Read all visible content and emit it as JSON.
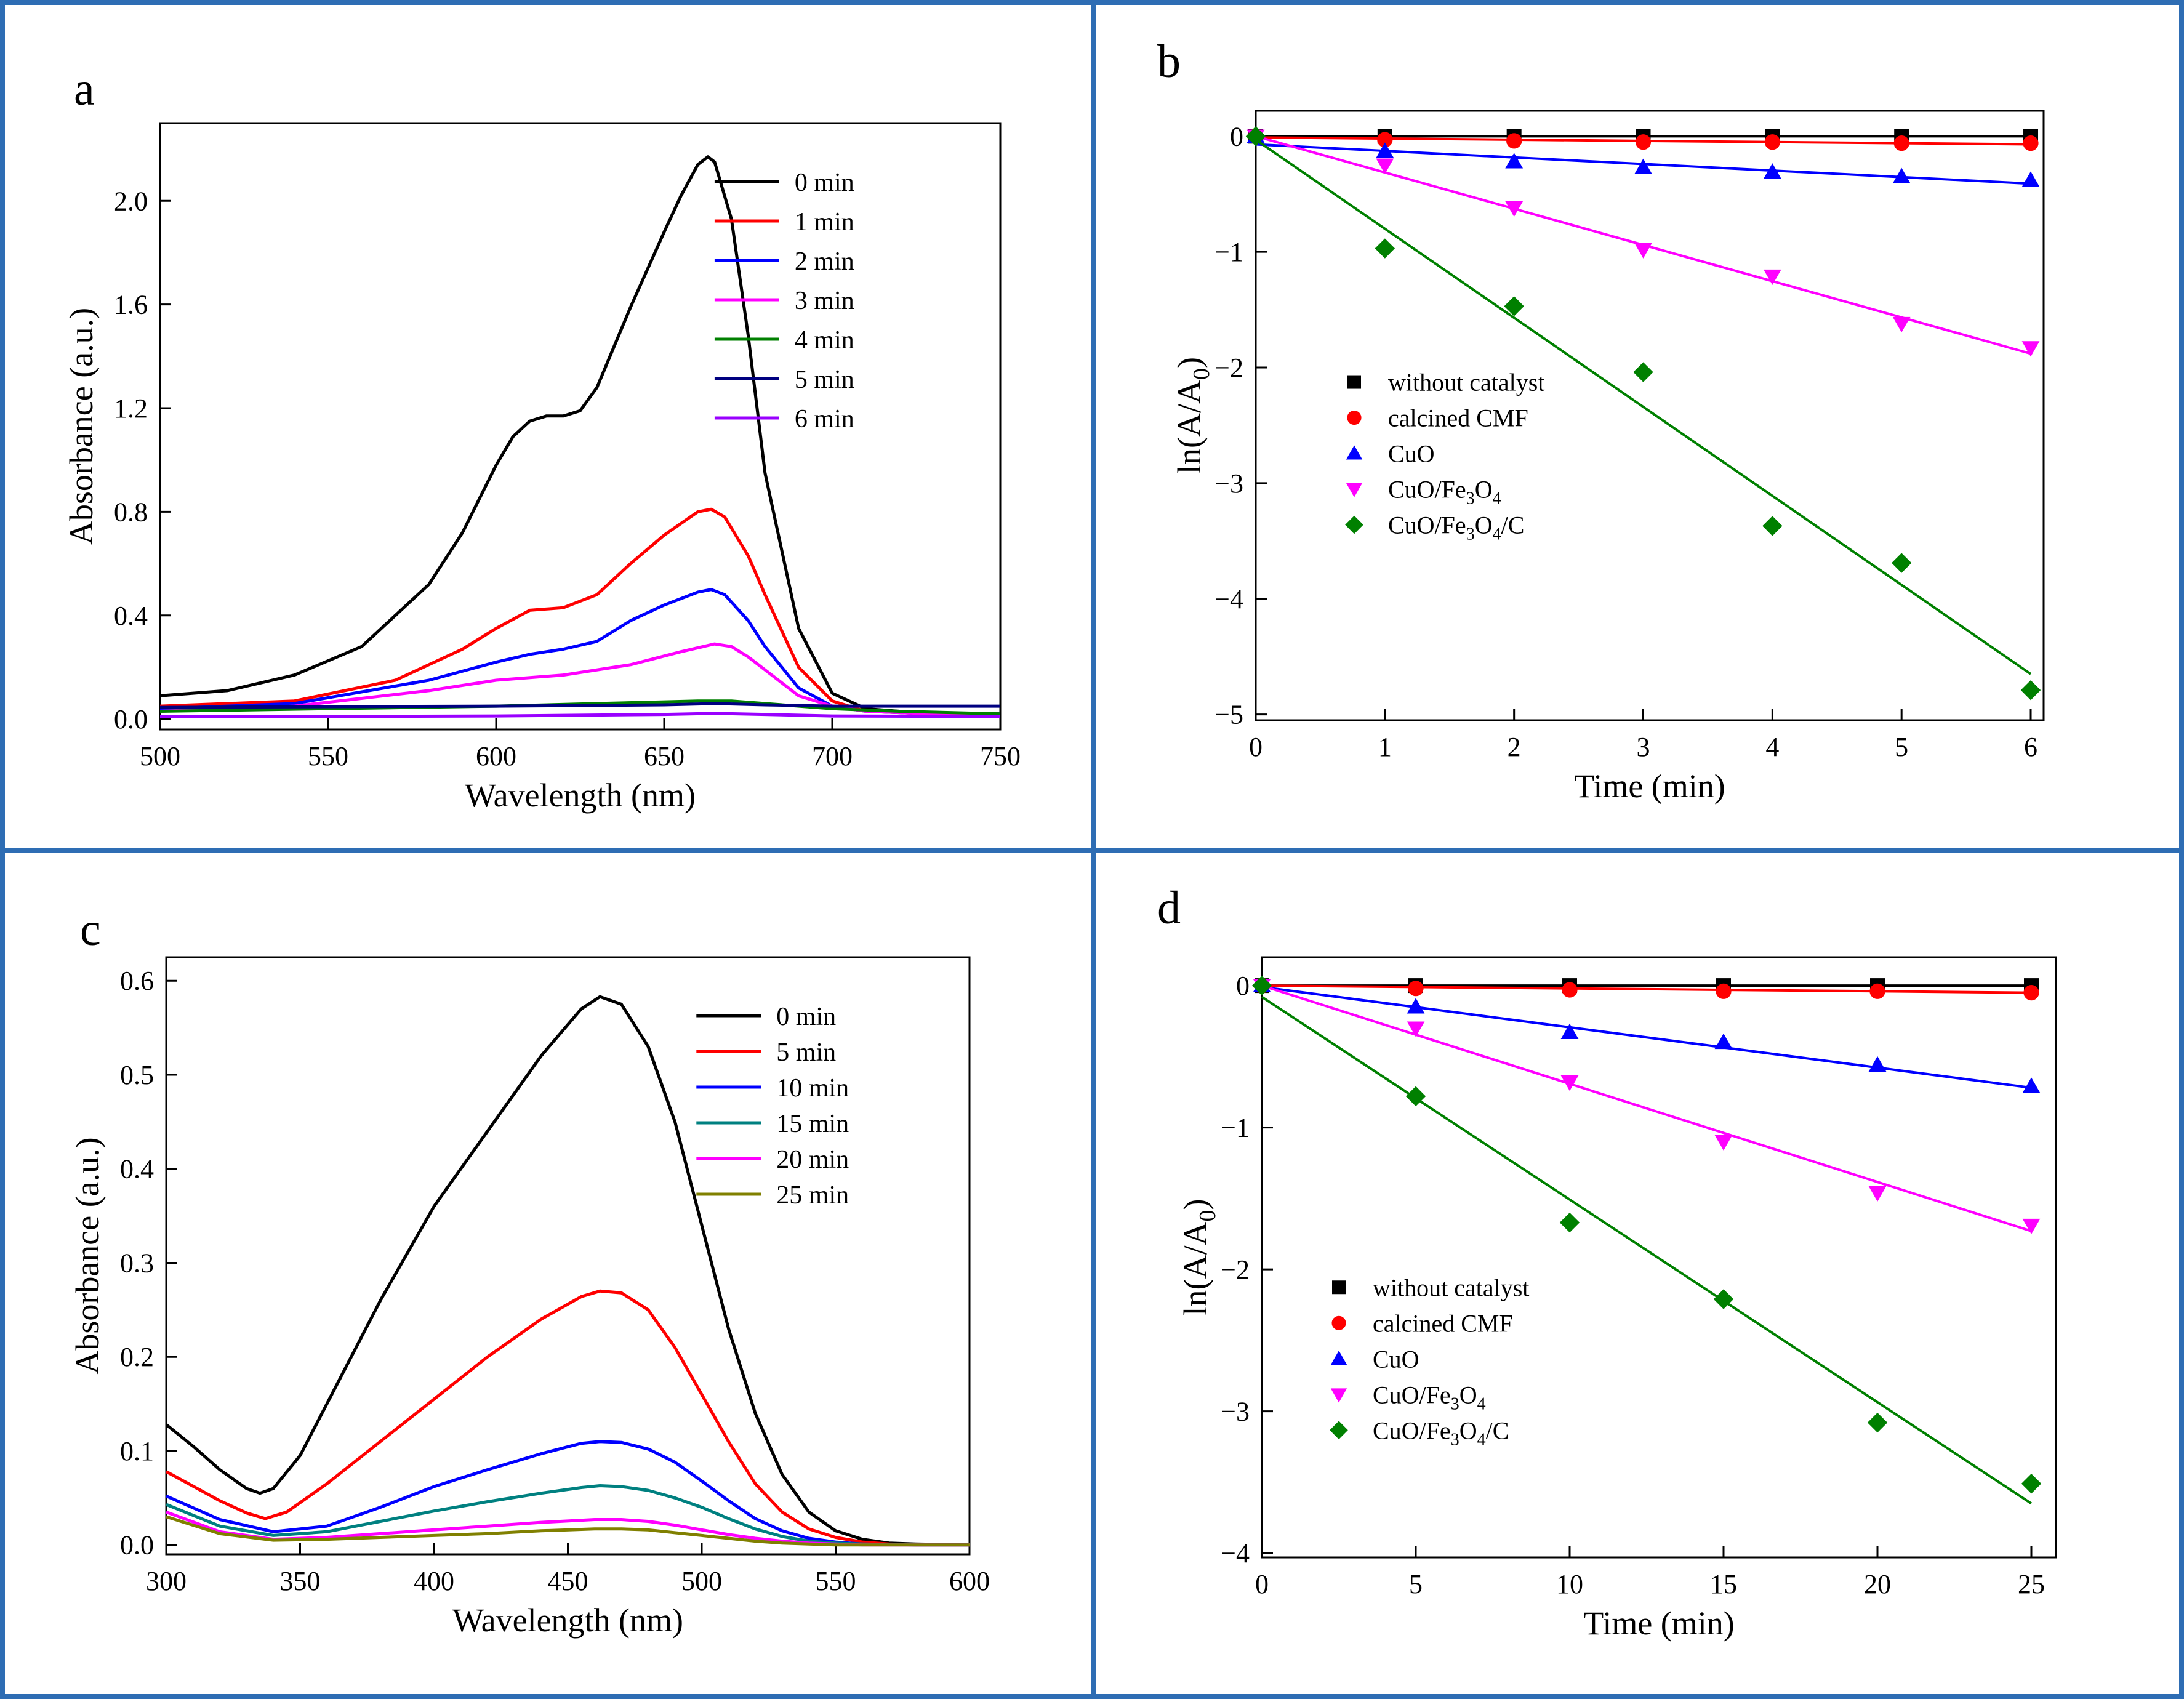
{
  "chart_data": [
    {
      "panel": "a",
      "type": "line",
      "title": "",
      "xlabel": "Wavelength (nm)",
      "ylabel": "Absorbance (a.u.)",
      "xlim": [
        500,
        750
      ],
      "ylim": [
        -0.04,
        2.3
      ],
      "xticks": [
        500,
        550,
        600,
        650,
        700,
        750
      ],
      "yticks": [
        0.0,
        0.4,
        0.8,
        1.2,
        1.6,
        2.0
      ],
      "ytick_labels": [
        "0.0",
        "0.4",
        "0.8",
        "1.2",
        "1.6",
        "2.0"
      ],
      "legend_position": "top-right",
      "series": [
        {
          "name": "0 min",
          "color": "#000000",
          "x": [
            500,
            520,
            540,
            560,
            580,
            590,
            600,
            605,
            610,
            615,
            620,
            625,
            630,
            640,
            650,
            655,
            660,
            663,
            665,
            670,
            675,
            680,
            690,
            700,
            710,
            720,
            735,
            750
          ],
          "y": [
            0.09,
            0.11,
            0.17,
            0.28,
            0.52,
            0.72,
            0.98,
            1.09,
            1.15,
            1.17,
            1.17,
            1.19,
            1.28,
            1.59,
            1.88,
            2.02,
            2.14,
            2.17,
            2.15,
            1.93,
            1.48,
            0.95,
            0.35,
            0.1,
            0.04,
            0.03,
            0.02,
            0.02
          ]
        },
        {
          "name": "1 min",
          "color": "#ff0000",
          "x": [
            500,
            540,
            570,
            590,
            600,
            610,
            620,
            630,
            640,
            650,
            660,
            664,
            668,
            675,
            680,
            690,
            700,
            710,
            730,
            750
          ],
          "y": [
            0.05,
            0.07,
            0.15,
            0.27,
            0.35,
            0.42,
            0.43,
            0.48,
            0.6,
            0.71,
            0.8,
            0.81,
            0.78,
            0.63,
            0.48,
            0.2,
            0.07,
            0.03,
            0.02,
            0.02
          ]
        },
        {
          "name": "2 min",
          "color": "#0000ff",
          "x": [
            500,
            540,
            580,
            600,
            610,
            620,
            630,
            640,
            650,
            660,
            664,
            668,
            675,
            680,
            690,
            700,
            710,
            730,
            750
          ],
          "y": [
            0.04,
            0.06,
            0.15,
            0.22,
            0.25,
            0.27,
            0.3,
            0.38,
            0.44,
            0.49,
            0.5,
            0.48,
            0.38,
            0.28,
            0.12,
            0.05,
            0.03,
            0.02,
            0.02
          ]
        },
        {
          "name": "3 min",
          "color": "#ff00ff",
          "x": [
            500,
            540,
            580,
            600,
            620,
            640,
            655,
            665,
            670,
            675,
            680,
            690,
            700,
            710,
            730,
            750
          ],
          "y": [
            0.03,
            0.05,
            0.11,
            0.15,
            0.17,
            0.21,
            0.26,
            0.29,
            0.28,
            0.24,
            0.19,
            0.09,
            0.05,
            0.03,
            0.02,
            0.01
          ]
        },
        {
          "name": "4 min",
          "color": "#008000",
          "x": [
            500,
            550,
            600,
            630,
            660,
            670,
            680,
            700,
            720,
            750
          ],
          "y": [
            0.03,
            0.04,
            0.05,
            0.06,
            0.07,
            0.07,
            0.06,
            0.04,
            0.03,
            0.02
          ]
        },
        {
          "name": "5 min",
          "color": "#000080",
          "x": [
            500,
            550,
            600,
            650,
            665,
            680,
            700,
            720,
            750
          ],
          "y": [
            0.045,
            0.048,
            0.05,
            0.055,
            0.06,
            0.055,
            0.05,
            0.05,
            0.05
          ]
        },
        {
          "name": "6 min",
          "color": "#9900ff",
          "x": [
            500,
            550,
            600,
            650,
            665,
            680,
            700,
            750
          ],
          "y": [
            0.01,
            0.01,
            0.012,
            0.018,
            0.022,
            0.018,
            0.012,
            0.01
          ]
        }
      ]
    },
    {
      "panel": "b",
      "type": "scatter",
      "title": "",
      "xlabel": "Time (min)",
      "ylabel": "ln(A/A0)",
      "xlim": [
        0,
        6.1
      ],
      "ylim": [
        -5.05,
        0.22
      ],
      "xticks": [
        0,
        1,
        2,
        3,
        4,
        5,
        6
      ],
      "yticks": [
        0,
        -1,
        -2,
        -3,
        -4,
        -5
      ],
      "ytick_labels": [
        "0",
        "-1",
        "-2",
        "-3",
        "-4",
        "-5"
      ],
      "legend_position": "bottom-left",
      "series": [
        {
          "name": "without catalyst",
          "label_main": "without catalyst",
          "color": "#000000",
          "marker": "square",
          "x": [
            0,
            1,
            2,
            3,
            4,
            5,
            6
          ],
          "y": [
            0,
            0,
            0,
            0,
            0,
            0,
            0
          ],
          "fit": [
            0,
            0
          ]
        },
        {
          "name": "calcined CMF",
          "label_main": "calcined CMF",
          "color": "#ff0000",
          "marker": "circle",
          "x": [
            0,
            1,
            2,
            3,
            4,
            5,
            6
          ],
          "y": [
            0,
            -0.03,
            -0.04,
            -0.05,
            -0.05,
            -0.06,
            -0.06
          ],
          "fit": [
            -0.01,
            -0.07
          ]
        },
        {
          "name": "CuO",
          "label_main": "CuO",
          "color": "#0000ff",
          "marker": "triangle-up",
          "x": [
            0,
            1,
            2,
            3,
            4,
            5,
            6
          ],
          "y": [
            0,
            -0.13,
            -0.22,
            -0.27,
            -0.31,
            -0.35,
            -0.38
          ],
          "fit": [
            -0.07,
            -0.41
          ]
        },
        {
          "name": "CuO/Fe3O4",
          "label_main": "CuO/Fe",
          "label_parts": [
            "CuO/Fe",
            "3",
            "O",
            "4",
            ""
          ],
          "color": "#ff00ff",
          "marker": "triangle-down",
          "x": [
            0,
            1,
            2,
            3,
            4,
            5,
            6
          ],
          "y": [
            0,
            -0.25,
            -0.62,
            -0.98,
            -1.21,
            -1.62,
            -1.83
          ],
          "fit": [
            0,
            -1.88
          ]
        },
        {
          "name": "CuO/Fe3O4/C",
          "label_main": "CuO/Fe",
          "label_parts": [
            "CuO/Fe",
            "3",
            "O",
            "4",
            "/C"
          ],
          "color": "#008000",
          "marker": "diamond",
          "x": [
            0,
            1,
            2,
            3,
            4,
            5,
            6
          ],
          "y": [
            0,
            -0.97,
            -1.47,
            -2.04,
            -3.37,
            -3.69,
            -4.79
          ],
          "fit": [
            -0.03,
            -4.65
          ]
        }
      ]
    },
    {
      "panel": "c",
      "type": "line",
      "title": "",
      "xlabel": "Wavelength (nm)",
      "ylabel": "Absorbance (a.u.)",
      "xlim": [
        300,
        600
      ],
      "ylim": [
        -0.01,
        0.625
      ],
      "xticks": [
        300,
        350,
        400,
        450,
        500,
        550,
        600
      ],
      "yticks": [
        0.0,
        0.1,
        0.2,
        0.3,
        0.4,
        0.5,
        0.6
      ],
      "ytick_labels": [
        "0.0",
        "0.1",
        "0.2",
        "0.3",
        "0.4",
        "0.5",
        "0.6"
      ],
      "legend_position": "top-right",
      "series": [
        {
          "name": "0 min",
          "color": "#000000",
          "x": [
            300,
            310,
            320,
            330,
            335,
            340,
            350,
            360,
            380,
            400,
            420,
            440,
            455,
            462,
            470,
            480,
            490,
            500,
            510,
            520,
            530,
            540,
            550,
            560,
            570,
            580,
            600
          ],
          "y": [
            0.128,
            0.105,
            0.08,
            0.06,
            0.055,
            0.06,
            0.095,
            0.15,
            0.26,
            0.36,
            0.44,
            0.52,
            0.57,
            0.583,
            0.575,
            0.53,
            0.45,
            0.34,
            0.23,
            0.14,
            0.075,
            0.035,
            0.015,
            0.006,
            0.002,
            0.001,
            0.0
          ]
        },
        {
          "name": "5 min",
          "color": "#ff0000",
          "x": [
            300,
            320,
            330,
            337,
            345,
            360,
            380,
            400,
            420,
            440,
            455,
            462,
            470,
            480,
            490,
            500,
            510,
            520,
            530,
            540,
            550,
            560,
            570,
            580,
            600
          ],
          "y": [
            0.078,
            0.047,
            0.034,
            0.028,
            0.035,
            0.065,
            0.11,
            0.155,
            0.2,
            0.24,
            0.264,
            0.27,
            0.268,
            0.25,
            0.21,
            0.16,
            0.11,
            0.065,
            0.035,
            0.017,
            0.008,
            0.003,
            0.001,
            0.0,
            0.0
          ]
        },
        {
          "name": "10 min",
          "color": "#0000ff",
          "x": [
            300,
            320,
            340,
            360,
            380,
            400,
            420,
            440,
            455,
            462,
            470,
            480,
            490,
            500,
            510,
            520,
            530,
            540,
            550,
            560,
            580,
            600
          ],
          "y": [
            0.052,
            0.027,
            0.014,
            0.02,
            0.04,
            0.062,
            0.08,
            0.097,
            0.108,
            0.11,
            0.109,
            0.102,
            0.088,
            0.068,
            0.047,
            0.028,
            0.015,
            0.007,
            0.003,
            0.001,
            0.0,
            0.0
          ]
        },
        {
          "name": "15 min",
          "color": "#008080",
          "x": [
            300,
            320,
            340,
            360,
            380,
            400,
            420,
            440,
            455,
            462,
            470,
            480,
            490,
            500,
            510,
            520,
            530,
            540,
            550,
            560,
            580,
            600
          ],
          "y": [
            0.043,
            0.02,
            0.01,
            0.014,
            0.025,
            0.036,
            0.046,
            0.055,
            0.061,
            0.063,
            0.062,
            0.058,
            0.05,
            0.04,
            0.028,
            0.017,
            0.009,
            0.004,
            0.002,
            0.001,
            0.0,
            0.0
          ]
        },
        {
          "name": "20 min",
          "color": "#ff00ff",
          "x": [
            300,
            320,
            340,
            360,
            380,
            400,
            420,
            440,
            460,
            470,
            480,
            490,
            500,
            510,
            520,
            530,
            540,
            550,
            560,
            580,
            600
          ],
          "y": [
            0.035,
            0.014,
            0.006,
            0.008,
            0.012,
            0.016,
            0.02,
            0.024,
            0.027,
            0.027,
            0.025,
            0.021,
            0.016,
            0.011,
            0.007,
            0.004,
            0.002,
            0.001,
            0.0,
            0.0,
            0.0
          ]
        },
        {
          "name": "25 min",
          "color": "#808000",
          "x": [
            300,
            320,
            340,
            360,
            380,
            400,
            420,
            440,
            460,
            470,
            480,
            490,
            500,
            510,
            520,
            530,
            540,
            550,
            560,
            580,
            600
          ],
          "y": [
            0.03,
            0.012,
            0.005,
            0.006,
            0.008,
            0.01,
            0.012,
            0.015,
            0.017,
            0.017,
            0.016,
            0.013,
            0.01,
            0.007,
            0.004,
            0.002,
            0.001,
            0.0,
            0.0,
            0.0,
            0.0
          ]
        }
      ]
    },
    {
      "panel": "d",
      "type": "scatter",
      "title": "",
      "xlabel": "Time (min)",
      "ylabel": "ln(A/A0)",
      "xlim": [
        0,
        25.8
      ],
      "ylim": [
        -4.03,
        0.2
      ],
      "xticks": [
        0,
        5,
        10,
        15,
        20,
        25
      ],
      "yticks": [
        0,
        -1,
        -2,
        -3,
        -4
      ],
      "ytick_labels": [
        "0",
        "-1",
        "-2",
        "-3",
        "-4"
      ],
      "legend_position": "bottom-left",
      "series": [
        {
          "name": "without catalyst",
          "label_main": "without catalyst",
          "color": "#000000",
          "marker": "square",
          "x": [
            0,
            5,
            10,
            15,
            20,
            25
          ],
          "y": [
            0,
            0,
            0,
            0,
            0,
            0
          ],
          "fit": [
            0,
            0
          ]
        },
        {
          "name": "calcined CMF",
          "label_main": "calcined CMF",
          "color": "#ff0000",
          "marker": "circle",
          "x": [
            0,
            5,
            10,
            15,
            20,
            25
          ],
          "y": [
            0,
            -0.02,
            -0.03,
            -0.04,
            -0.04,
            -0.05
          ],
          "fit": [
            0,
            -0.05
          ]
        },
        {
          "name": "CuO",
          "label_main": "CuO",
          "color": "#0000ff",
          "marker": "triangle-up",
          "x": [
            0,
            5,
            10,
            15,
            20,
            25
          ],
          "y": [
            0,
            -0.15,
            -0.33,
            -0.4,
            -0.56,
            -0.71
          ],
          "fit": [
            -0.01,
            -0.72
          ]
        },
        {
          "name": "CuO/Fe3O4",
          "label_main": "CuO/Fe",
          "label_parts": [
            "CuO/Fe",
            "3",
            "O",
            "4",
            ""
          ],
          "color": "#ff00ff",
          "marker": "triangle-down",
          "x": [
            0,
            5,
            10,
            15,
            20,
            25
          ],
          "y": [
            0,
            -0.3,
            -0.68,
            -1.1,
            -1.46,
            -1.69
          ],
          "fit": [
            0,
            -1.73
          ]
        },
        {
          "name": "CuO/Fe3O4/C",
          "label_main": "CuO/Fe",
          "label_parts": [
            "CuO/Fe",
            "3",
            "O",
            "4",
            "/C"
          ],
          "color": "#008000",
          "marker": "diamond",
          "x": [
            0,
            5,
            10,
            15,
            20,
            25
          ],
          "y": [
            0,
            -0.78,
            -1.67,
            -2.21,
            -3.08,
            -3.51
          ],
          "fit": [
            -0.08,
            -3.65
          ]
        }
      ]
    }
  ],
  "panels": {
    "a": {
      "letter": "a"
    },
    "b": {
      "letter": "b"
    },
    "c": {
      "letter": "c"
    },
    "d": {
      "letter": "d"
    }
  },
  "colors": {
    "frame": "#2e6db4"
  }
}
